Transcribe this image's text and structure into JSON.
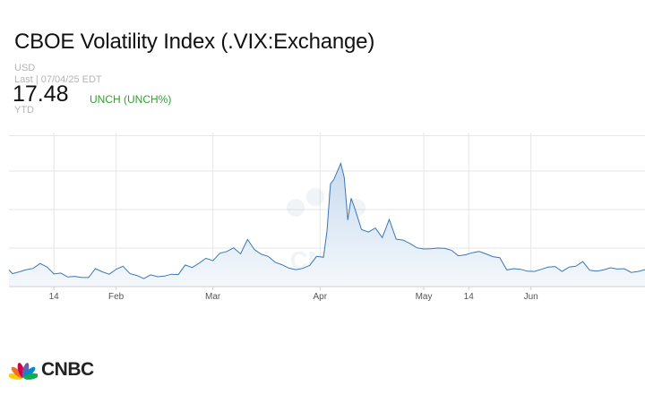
{
  "header": {
    "title": "CBOE Volatility Index (.VIX:Exchange)",
    "currency": "USD",
    "last_label": "Last | 07/04/25 EDT",
    "price": "17.48",
    "change": "UNCH (UNCH%)",
    "period": "YTD"
  },
  "brand": {
    "name": "CNBC",
    "watermark": "CNBC",
    "peacock_colors": [
      "#fccc12",
      "#f37021",
      "#cc004c",
      "#6460aa",
      "#0089d0",
      "#0db14b"
    ]
  },
  "colors": {
    "line": "#3a78b5",
    "area_top": "#c9dbee",
    "area_bottom": "#f4f8fc",
    "grid": "#e6e6e6",
    "axis": "#cfcfcf",
    "change": "#2aa42a"
  },
  "chart_data": {
    "type": "area",
    "title": "CBOE Volatility Index (.VIX:Exchange)",
    "xlabel": "",
    "ylabel": "",
    "x_range": [
      "2025-01-01",
      "2025-07-04"
    ],
    "ylim": [
      12,
      62
    ],
    "grid": true,
    "tick_labels": [
      {
        "label": "14",
        "date": "2025-01-14"
      },
      {
        "label": "Feb",
        "date": "2025-02-01"
      },
      {
        "label": "Mar",
        "date": "2025-03-01"
      },
      {
        "label": "Apr",
        "date": "2025-04-01"
      },
      {
        "label": "May",
        "date": "2025-05-01"
      },
      {
        "label": "14",
        "date": "2025-05-14"
      },
      {
        "label": "Jun",
        "date": "2025-06-01"
      }
    ],
    "x": [
      "2025-01-01",
      "2025-01-02",
      "2025-01-04",
      "2025-01-06",
      "2025-01-08",
      "2025-01-10",
      "2025-01-12",
      "2025-01-14",
      "2025-01-16",
      "2025-01-18",
      "2025-01-20",
      "2025-01-22",
      "2025-01-24",
      "2025-01-26",
      "2025-01-28",
      "2025-01-30",
      "2025-02-01",
      "2025-02-03",
      "2025-02-05",
      "2025-02-07",
      "2025-02-09",
      "2025-02-11",
      "2025-02-13",
      "2025-02-15",
      "2025-02-17",
      "2025-02-19",
      "2025-02-21",
      "2025-02-23",
      "2025-02-25",
      "2025-02-27",
      "2025-03-01",
      "2025-03-03",
      "2025-03-05",
      "2025-03-07",
      "2025-03-09",
      "2025-03-11",
      "2025-03-13",
      "2025-03-15",
      "2025-03-17",
      "2025-03-19",
      "2025-03-21",
      "2025-03-23",
      "2025-03-25",
      "2025-03-27",
      "2025-03-29",
      "2025-03-31",
      "2025-04-02",
      "2025-04-03",
      "2025-04-04",
      "2025-04-05",
      "2025-04-07",
      "2025-04-08",
      "2025-04-09",
      "2025-04-10",
      "2025-04-11",
      "2025-04-13",
      "2025-04-15",
      "2025-04-17",
      "2025-04-19",
      "2025-04-21",
      "2025-04-23",
      "2025-04-25",
      "2025-04-27",
      "2025-04-29",
      "2025-05-01",
      "2025-05-03",
      "2025-05-05",
      "2025-05-07",
      "2025-05-09",
      "2025-05-11",
      "2025-05-13",
      "2025-05-15",
      "2025-05-17",
      "2025-05-19",
      "2025-05-21",
      "2025-05-23",
      "2025-05-25",
      "2025-05-27",
      "2025-05-29",
      "2025-05-31",
      "2025-06-02",
      "2025-06-04",
      "2025-06-06",
      "2025-06-08",
      "2025-06-10",
      "2025-06-12",
      "2025-06-14",
      "2025-06-16",
      "2025-06-18",
      "2025-06-20",
      "2025-06-22",
      "2025-06-24",
      "2025-06-26",
      "2025-06-28",
      "2025-06-30",
      "2025-07-02",
      "2025-07-04"
    ],
    "series": [
      {
        "values": [
          17.4,
          16.2,
          16.8,
          17.5,
          17.9,
          19.5,
          18.4,
          16.1,
          16.4,
          15.1,
          15.3,
          15.0,
          14.9,
          17.8,
          16.8,
          16.0,
          17.6,
          18.6,
          16.2,
          15.6,
          14.6,
          15.8,
          15.2,
          15.4,
          16.0,
          15.9,
          19.0,
          18.2,
          19.6,
          21.2,
          20.4,
          22.8,
          23.4,
          24.6,
          22.6,
          27.3,
          24.0,
          22.5,
          21.8,
          19.9,
          19.1,
          18.0,
          17.5,
          17.9,
          18.9,
          21.8,
          21.5,
          30.0,
          45.3,
          46.8,
          52.0,
          47.4,
          33.6,
          40.7,
          37.5,
          30.5,
          29.7,
          31.0,
          27.9,
          33.8,
          27.4,
          27.1,
          26.0,
          24.6,
          24.2,
          24.3,
          24.5,
          24.4,
          23.8,
          22.0,
          22.3,
          23.0,
          23.4,
          22.6,
          21.7,
          21.4,
          17.4,
          17.8,
          17.6,
          17.0,
          16.9,
          17.6,
          18.3,
          18.5,
          16.9,
          18.3,
          18.6,
          20.1,
          17.3,
          17.0,
          17.4,
          18.1,
          17.7,
          17.8,
          16.6,
          16.9,
          17.5
        ]
      }
    ]
  }
}
